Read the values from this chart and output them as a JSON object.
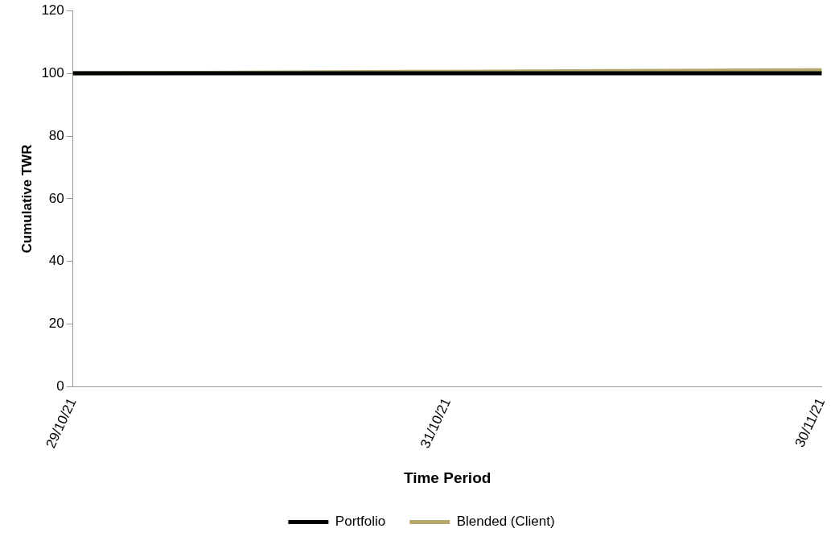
{
  "chart_data": {
    "type": "line",
    "xlabel": "Time Period",
    "ylabel": "Cumulative TWR",
    "categories": [
      "29/10/21",
      "31/10/21",
      "30/11/21"
    ],
    "series": [
      {
        "name": "Portfolio",
        "color": "#000000",
        "values": [
          100,
          100,
          100
        ]
      },
      {
        "name": "Blended (Client)",
        "color": "#b5a86a",
        "values": [
          100,
          100.5,
          101
        ]
      }
    ],
    "ylim": [
      0,
      120
    ],
    "yticks": [
      0,
      20,
      40,
      60,
      80,
      100,
      120
    ],
    "grid": false,
    "legend": "bottom",
    "marker": "none",
    "line_style": "solid"
  }
}
